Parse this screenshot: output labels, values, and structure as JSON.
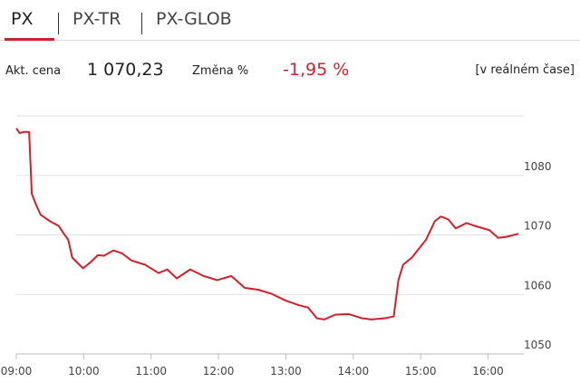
{
  "tabs": [
    "PX",
    "PX-TR",
    "PX-GLOB"
  ],
  "stats": {
    "price_label": "Akt. cena",
    "price": "1 070,23",
    "change_label": "Změna %",
    "change": "-1,95 %",
    "realtime": "[v reálném čase]"
  },
  "chart_data": {
    "type": "line",
    "color": "#d21f2c",
    "grid": true,
    "x": [
      9.0,
      9.05,
      9.11,
      9.19,
      9.23,
      9.3,
      9.36,
      9.5,
      9.63,
      9.7,
      9.77,
      9.83,
      9.9,
      9.99,
      10.1,
      10.21,
      10.3,
      10.44,
      10.57,
      10.71,
      10.91,
      11.11,
      11.24,
      11.38,
      11.58,
      11.78,
      11.98,
      12.19,
      12.39,
      12.59,
      12.79,
      12.99,
      13.19,
      13.33,
      13.46,
      13.57,
      13.73,
      13.93,
      14.13,
      14.27,
      14.47,
      14.6,
      14.67,
      14.74,
      14.87,
      15.08,
      15.21,
      15.3,
      15.41,
      15.52,
      15.68,
      15.81,
      16.02,
      16.15,
      16.28,
      16.45
    ],
    "values": [
      1087.9,
      1087.1,
      1087.3,
      1087.3,
      1076.9,
      1074.9,
      1073.4,
      1072.3,
      1071.5,
      1070.3,
      1069.2,
      1066.2,
      1065.4,
      1064.4,
      1065.4,
      1066.6,
      1066.5,
      1067.4,
      1066.9,
      1065.7,
      1065.0,
      1063.6,
      1064.2,
      1062.7,
      1064.2,
      1063.1,
      1062.4,
      1063.1,
      1061.1,
      1060.8,
      1060.1,
      1059.0,
      1058.2,
      1057.8,
      1056.0,
      1055.8,
      1056.6,
      1056.7,
      1056.0,
      1055.8,
      1056.0,
      1056.3,
      1062.4,
      1065.0,
      1066.2,
      1069.2,
      1072.3,
      1073.1,
      1072.6,
      1071.1,
      1072.0,
      1071.5,
      1070.8,
      1069.5,
      1069.7,
      1070.2
    ],
    "xlim": [
      9,
      16.45
    ],
    "xticks": [
      {
        "value": 9,
        "label": "09:00"
      },
      {
        "value": 10,
        "label": "10:00"
      },
      {
        "value": 11,
        "label": "11:00"
      },
      {
        "value": 12,
        "label": "12:00"
      },
      {
        "value": 13,
        "label": "13:00"
      },
      {
        "value": 14,
        "label": "14:00"
      },
      {
        "value": 15,
        "label": "15:00"
      },
      {
        "value": 16,
        "label": "16:00"
      }
    ],
    "ylim": [
      1050,
      1090
    ],
    "yticks": [
      1050,
      1060,
      1070,
      1080
    ]
  }
}
